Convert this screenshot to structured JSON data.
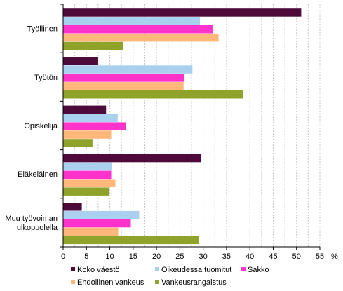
{
  "chart_data": {
    "type": "bar",
    "orientation": "horizontal",
    "categories": [
      [
        "Työllinen"
      ],
      [
        "Työtön"
      ],
      [
        "Opiskelija"
      ],
      [
        "Eläkeläinen"
      ],
      [
        "Muu työvoiman",
        "ulkopuolella"
      ]
    ],
    "series": [
      {
        "name": "Koko väestö",
        "color": "#4d0a3a",
        "values": [
          51,
          7.5,
          9.2,
          29.5,
          4
        ]
      },
      {
        "name": "Oikeudessa tuomitut",
        "color": "#a9d0ef",
        "values": [
          29.3,
          27.7,
          11.7,
          10.5,
          16.3
        ]
      },
      {
        "name": "Sakko",
        "color": "#ff33cc",
        "values": [
          32,
          26,
          13.5,
          10.3,
          14.5
        ]
      },
      {
        "name": "Ehdollinen vankeus",
        "color": "#ffb77a",
        "values": [
          33.3,
          25.8,
          10.3,
          11.2,
          11.8
        ]
      },
      {
        "name": "Vankeusrangaistus",
        "color": "#8fa32b",
        "values": [
          12.8,
          38.5,
          6.3,
          9.8,
          29
        ]
      }
    ],
    "x_ticks": [
      "0",
      "5",
      "10",
      "15",
      "20",
      "25",
      "30",
      "35",
      "40",
      "45",
      "50",
      "55"
    ],
    "xlim": [
      0,
      55
    ],
    "x_unit": "%",
    "grid": "vertical",
    "legend_position": "bottom"
  }
}
